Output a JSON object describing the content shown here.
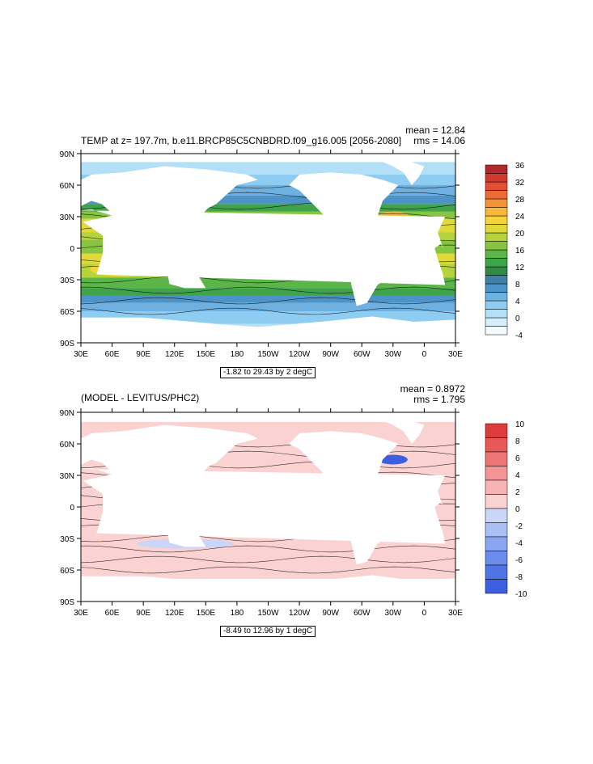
{
  "chart_data": [
    {
      "type": "heatmap",
      "title": "TEMP at z= 197.7m, b.e11.BRCP85C5CNBDRD.f09_g16.005 [2056-2080]",
      "stats": {
        "mean": "mean = 12.84",
        "rms": "rms = 14.06"
      },
      "range_label": "-1.82 to 29.43 by 2 degC",
      "xticks": [
        "30E",
        "60E",
        "90E",
        "120E",
        "150E",
        "180",
        "150W",
        "120W",
        "90W",
        "60W",
        "30W",
        "0",
        "30E"
      ],
      "yticks": [
        "90N",
        "60N",
        "30N",
        "0",
        "30S",
        "60S",
        "90S"
      ],
      "colorbar": {
        "labels": [
          "36",
          "32",
          "28",
          "24",
          "20",
          "16",
          "12",
          "8",
          "4",
          "0",
          "-4"
        ],
        "colors": [
          "#f4fbff",
          "#d6eefb",
          "#b4e0f7",
          "#8ecdf1",
          "#6eb1e0",
          "#4e93c8",
          "#3f80a4",
          "#2e8a44",
          "#3fa34a",
          "#5bb548",
          "#86c441",
          "#b5d33a",
          "#dfd93a",
          "#f3d43a",
          "#f7b73a",
          "#f59238",
          "#ee6b36",
          "#e24e33",
          "#cf3a2f",
          "#b02a2b"
        ]
      }
    },
    {
      "type": "heatmap",
      "title": "(MODEL - LEVITUS/PHC2)",
      "stats": {
        "mean": "mean = 0.8972",
        "rms": "rms = 1.795"
      },
      "range_label": "-8.49 to 12.96 by 1 degC",
      "xticks": [
        "30E",
        "60E",
        "90E",
        "120E",
        "150E",
        "180",
        "150W",
        "120W",
        "90W",
        "60W",
        "30W",
        "0",
        "30E"
      ],
      "yticks": [
        "90N",
        "60N",
        "30N",
        "0",
        "30S",
        "60S",
        "90S"
      ],
      "colorbar": {
        "labels": [
          "10",
          "8",
          "6",
          "4",
          "2",
          "0",
          "-2",
          "-4",
          "-6",
          "-8",
          "-10"
        ],
        "colors": [
          "#3b5fe0",
          "#4f74e6",
          "#6b8cec",
          "#8aa6f0",
          "#aabff4",
          "#cad6f8",
          "#fbd2d2",
          "#f8b4b4",
          "#f49494",
          "#ee7575",
          "#e85858",
          "#de3c3c"
        ]
      }
    }
  ]
}
